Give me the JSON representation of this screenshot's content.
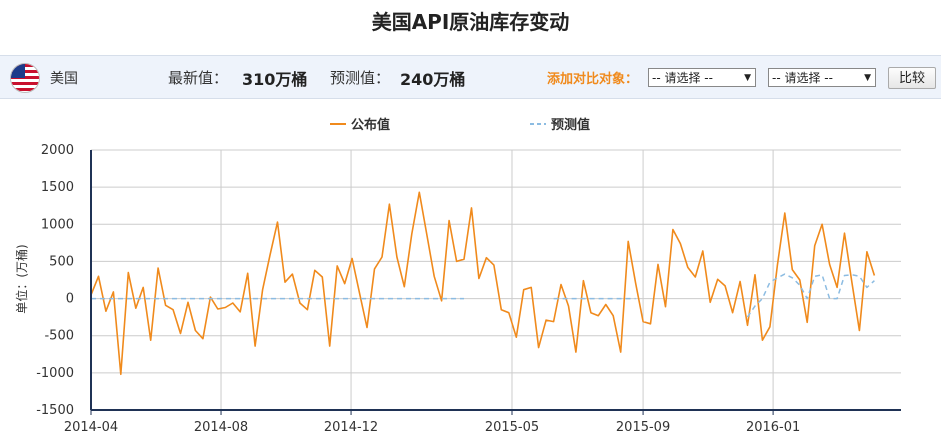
{
  "page": {
    "title": "美国API原油库存变动"
  },
  "info_bar": {
    "country": "美国",
    "latest_label": "最新值：",
    "latest_value": "310万桶",
    "forecast_label": "预测值：",
    "forecast_value": "240万桶",
    "compare_label": "添加对比对象：",
    "select1_value": "-- 请选择 --",
    "select2_value": "-- 请选择 --",
    "compare_button": "比较"
  },
  "colors": {
    "actual": "#f08a1c",
    "forecast": "#8cbce2",
    "grid": "#cccccc",
    "axis": "#1f3255"
  },
  "chart_data": {
    "type": "line",
    "title": "",
    "ylabel": "单位：(万桶)",
    "ylim": [
      -1500,
      2000
    ],
    "yticks": [
      2000,
      1500,
      1000,
      500,
      0,
      -500,
      -1000,
      -1500
    ],
    "xlim": [
      "2014-04-01",
      "2016-04-30"
    ],
    "xticks": [
      "2014-04",
      "2014-08",
      "2014-12",
      "2015-05",
      "2015-09",
      "2016-01"
    ],
    "grid": true,
    "legend_position": "top",
    "series": [
      {
        "name": "公布值",
        "style": "solid",
        "color": "#f08a1c",
        "points": [
          [
            "2014-04-01",
            50
          ],
          [
            "2014-04-08",
            300
          ],
          [
            "2014-04-15",
            -170
          ],
          [
            "2014-04-22",
            90
          ],
          [
            "2014-04-29",
            -1020
          ],
          [
            "2014-05-06",
            350
          ],
          [
            "2014-05-13",
            -130
          ],
          [
            "2014-05-20",
            150
          ],
          [
            "2014-05-27",
            -560
          ],
          [
            "2014-06-03",
            410
          ],
          [
            "2014-06-10",
            -90
          ],
          [
            "2014-06-17",
            -150
          ],
          [
            "2014-06-24",
            -470
          ],
          [
            "2014-07-01",
            -50
          ],
          [
            "2014-07-08",
            -430
          ],
          [
            "2014-07-15",
            -540
          ],
          [
            "2014-07-22",
            20
          ],
          [
            "2014-07-29",
            -140
          ],
          [
            "2014-08-05",
            -120
          ],
          [
            "2014-08-12",
            -60
          ],
          [
            "2014-08-19",
            -180
          ],
          [
            "2014-08-26",
            340
          ],
          [
            "2014-09-02",
            -640
          ],
          [
            "2014-09-09",
            120
          ],
          [
            "2014-09-16",
            590
          ],
          [
            "2014-09-23",
            1030
          ],
          [
            "2014-09-30",
            220
          ],
          [
            "2014-10-07",
            330
          ],
          [
            "2014-10-14",
            -60
          ],
          [
            "2014-10-21",
            -150
          ],
          [
            "2014-10-28",
            380
          ],
          [
            "2014-11-04",
            290
          ],
          [
            "2014-11-11",
            -640
          ],
          [
            "2014-11-18",
            440
          ],
          [
            "2014-11-25",
            200
          ],
          [
            "2014-12-02",
            540
          ],
          [
            "2014-12-09",
            70
          ],
          [
            "2014-12-16",
            -390
          ],
          [
            "2014-12-23",
            400
          ],
          [
            "2014-12-30",
            560
          ],
          [
            "2015-01-06",
            1270
          ],
          [
            "2015-01-13",
            560
          ],
          [
            "2015-01-20",
            160
          ],
          [
            "2015-01-27",
            870
          ],
          [
            "2015-02-03",
            1430
          ],
          [
            "2015-02-10",
            870
          ],
          [
            "2015-02-17",
            300
          ],
          [
            "2015-02-24",
            -30
          ],
          [
            "2015-03-03",
            1050
          ],
          [
            "2015-03-10",
            500
          ],
          [
            "2015-03-17",
            530
          ],
          [
            "2015-03-24",
            1220
          ],
          [
            "2015-03-31",
            270
          ],
          [
            "2015-04-07",
            550
          ],
          [
            "2015-04-14",
            450
          ],
          [
            "2015-04-21",
            -150
          ],
          [
            "2015-04-28",
            -190
          ],
          [
            "2015-05-05",
            -520
          ],
          [
            "2015-05-12",
            120
          ],
          [
            "2015-05-19",
            150
          ],
          [
            "2015-05-26",
            -660
          ],
          [
            "2015-06-02",
            -290
          ],
          [
            "2015-06-09",
            -310
          ],
          [
            "2015-06-16",
            190
          ],
          [
            "2015-06-23",
            -100
          ],
          [
            "2015-06-30",
            -720
          ],
          [
            "2015-07-07",
            240
          ],
          [
            "2015-07-14",
            -190
          ],
          [
            "2015-07-21",
            -230
          ],
          [
            "2015-07-28",
            -80
          ],
          [
            "2015-08-04",
            -230
          ],
          [
            "2015-08-11",
            -720
          ],
          [
            "2015-08-18",
            770
          ],
          [
            "2015-08-25",
            210
          ],
          [
            "2015-09-01",
            -310
          ],
          [
            "2015-09-08",
            -340
          ],
          [
            "2015-09-15",
            460
          ],
          [
            "2015-09-22",
            -110
          ],
          [
            "2015-09-29",
            930
          ],
          [
            "2015-10-06",
            740
          ],
          [
            "2015-10-13",
            420
          ],
          [
            "2015-10-20",
            290
          ],
          [
            "2015-10-27",
            640
          ],
          [
            "2015-11-03",
            -50
          ],
          [
            "2015-11-10",
            260
          ],
          [
            "2015-11-17",
            170
          ],
          [
            "2015-11-24",
            -190
          ],
          [
            "2015-12-01",
            230
          ],
          [
            "2015-12-08",
            -360
          ],
          [
            "2015-12-15",
            320
          ],
          [
            "2015-12-22",
            -560
          ],
          [
            "2015-12-29",
            -380
          ],
          [
            "2016-01-05",
            450
          ],
          [
            "2016-01-12",
            1150
          ],
          [
            "2016-01-19",
            390
          ],
          [
            "2016-01-26",
            250
          ],
          [
            "2016-02-02",
            -320
          ],
          [
            "2016-02-09",
            710
          ],
          [
            "2016-02-16",
            1000
          ],
          [
            "2016-02-23",
            460
          ],
          [
            "2016-03-01",
            150
          ],
          [
            "2016-03-08",
            880
          ],
          [
            "2016-03-15",
            210
          ],
          [
            "2016-03-22",
            -430
          ],
          [
            "2016-03-29",
            630
          ],
          [
            "2016-04-05",
            310
          ]
        ]
      },
      {
        "name": "预测值",
        "style": "dashed",
        "color": "#8cbce2",
        "points": [
          [
            "2014-04-01",
            0
          ],
          [
            "2015-03-17",
            0
          ],
          [
            "2015-06-09",
            0
          ],
          [
            "2015-08-25",
            0
          ],
          [
            "2015-12-08",
            -250
          ],
          [
            "2015-12-15",
            -100
          ],
          [
            "2015-12-22",
            0
          ],
          [
            "2015-12-29",
            220
          ],
          [
            "2016-01-05",
            280
          ],
          [
            "2016-01-12",
            330
          ],
          [
            "2016-01-19",
            280
          ],
          [
            "2016-01-26",
            180
          ],
          [
            "2016-02-02",
            0
          ],
          [
            "2016-02-09",
            300
          ],
          [
            "2016-02-16",
            320
          ],
          [
            "2016-02-23",
            0
          ],
          [
            "2016-03-01",
            0
          ],
          [
            "2016-03-08",
            310
          ],
          [
            "2016-03-15",
            320
          ],
          [
            "2016-03-22",
            300
          ],
          [
            "2016-03-29",
            150
          ],
          [
            "2016-04-05",
            240
          ]
        ],
        "gaps_after": [
          "2015-03-17",
          "2015-08-25"
        ]
      }
    ]
  }
}
